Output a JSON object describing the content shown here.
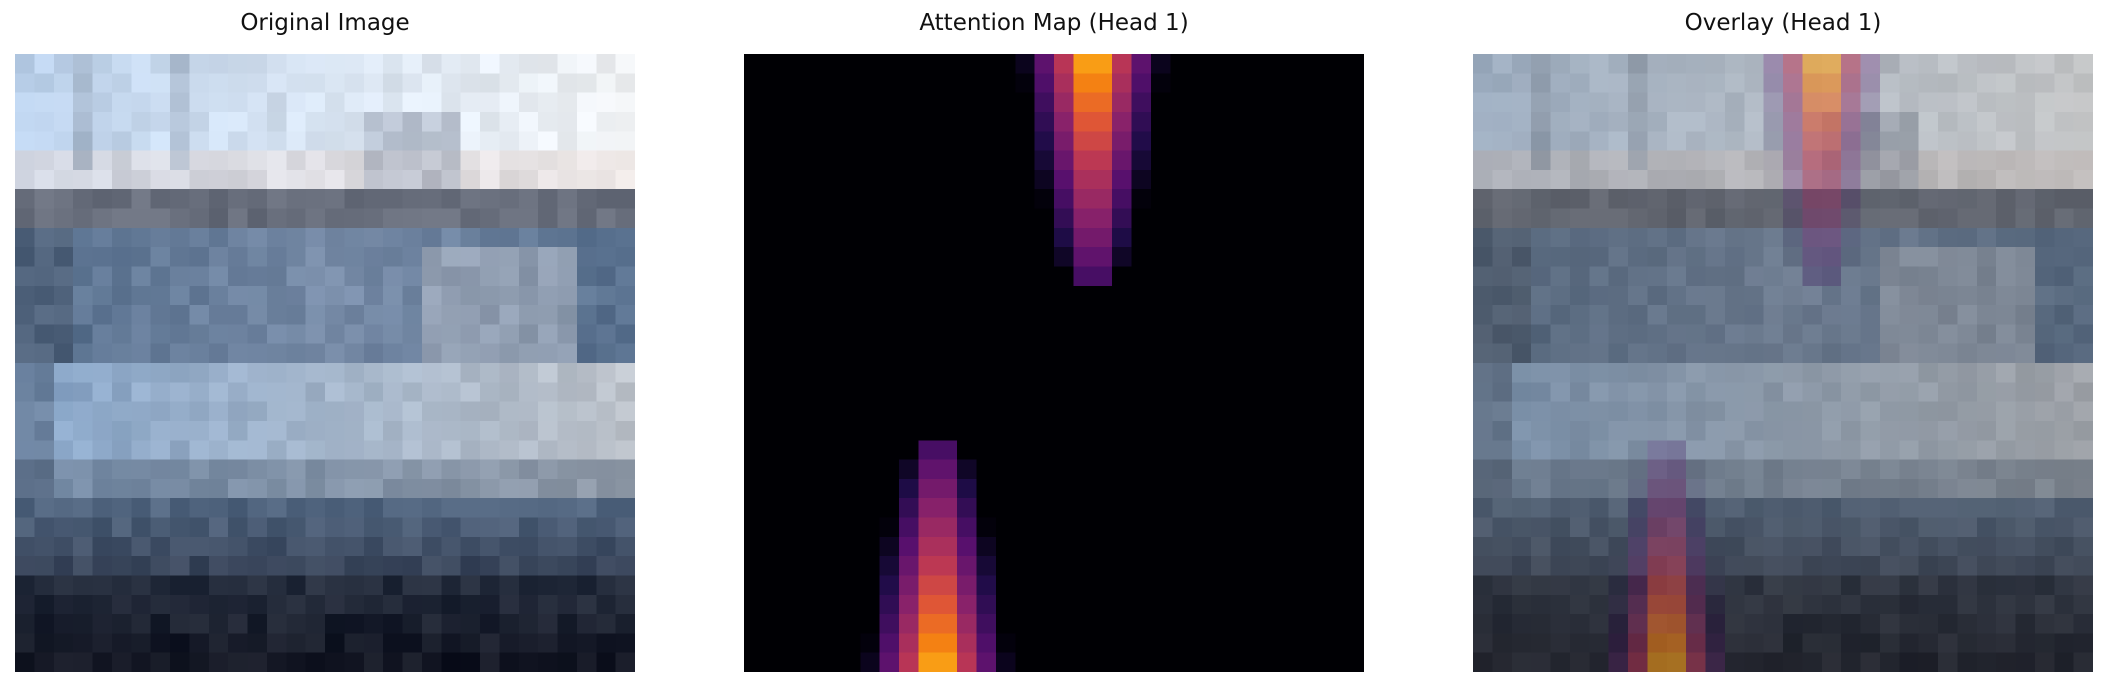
{
  "panels": [
    {
      "title": "Original Image"
    },
    {
      "title": "Attention Map (Head 1)"
    },
    {
      "title": "Overlay (Head 1)"
    }
  ],
  "colors": {
    "background": "#ffffff",
    "attention_zero": "#000004",
    "attention_peak": "#fcffa4"
  }
}
